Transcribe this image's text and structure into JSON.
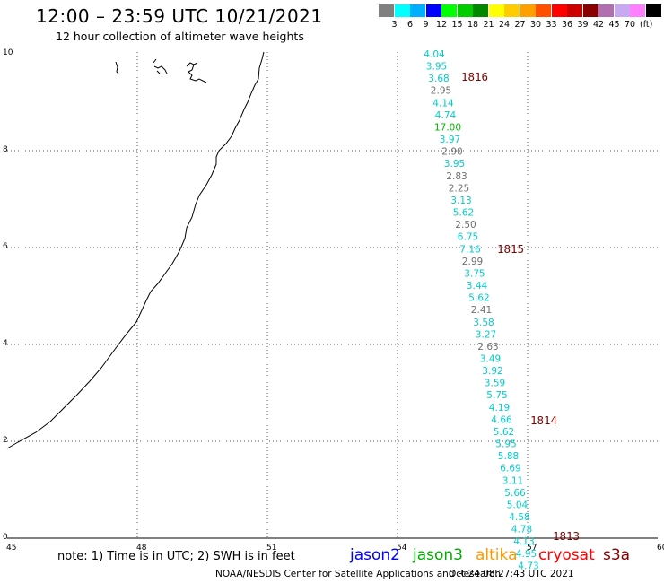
{
  "header": {
    "title": "12:00 – 23:59 UTC 10/21/2021",
    "subtitle": "12 hour collection of altimeter wave heights"
  },
  "legend": {
    "unit": "(ft)",
    "items": [
      {
        "label": "",
        "color": "#808080"
      },
      {
        "label": "3",
        "color": "#00ffff"
      },
      {
        "label": "6",
        "color": "#00b0ff"
      },
      {
        "label": "9",
        "color": "#0000ff"
      },
      {
        "label": "12",
        "color": "#00ff00"
      },
      {
        "label": "15",
        "color": "#00cc00"
      },
      {
        "label": "18",
        "color": "#008800"
      },
      {
        "label": "21",
        "color": "#ffff00"
      },
      {
        "label": "24",
        "color": "#ffcc00"
      },
      {
        "label": "27",
        "color": "#ffa000"
      },
      {
        "label": "30",
        "color": "#ff5000"
      },
      {
        "label": "33",
        "color": "#ff0000"
      },
      {
        "label": "36",
        "color": "#cc0000"
      },
      {
        "label": "39",
        "color": "#880000"
      },
      {
        "label": "42",
        "color": "#b070b0"
      },
      {
        "label": "45",
        "color": "#c8a8f0"
      },
      {
        "label": "70",
        "color": "#ff80ff"
      },
      {
        "label": "",
        "color": "#000000"
      }
    ]
  },
  "axes": {
    "x_ticks": [
      "45",
      "48",
      "51",
      "54",
      "57",
      "60"
    ],
    "y_ticks": [
      "0",
      "2",
      "4",
      "6",
      "8",
      "10"
    ]
  },
  "track": {
    "observations": [
      {
        "value": "4.04",
        "color": "#00cccc"
      },
      {
        "value": "3.95",
        "color": "#00cccc"
      },
      {
        "value": "3.68",
        "color": "#00cccc"
      },
      {
        "value": "2.95",
        "color": "#707070"
      },
      {
        "value": "4.14",
        "color": "#00cccc"
      },
      {
        "value": "4.74",
        "color": "#00cccc"
      },
      {
        "value": "17.00",
        "color": "#00bb00"
      },
      {
        "value": "3.97",
        "color": "#00cccc"
      },
      {
        "value": "2.90",
        "color": "#707070"
      },
      {
        "value": "3.95",
        "color": "#00cccc"
      },
      {
        "value": "2.83",
        "color": "#707070"
      },
      {
        "value": "2.25",
        "color": "#707070"
      },
      {
        "value": "3.13",
        "color": "#00cccc"
      },
      {
        "value": "5.62",
        "color": "#00cccc"
      },
      {
        "value": "2.50",
        "color": "#707070"
      },
      {
        "value": "6.75",
        "color": "#00cccc"
      },
      {
        "value": "7.16",
        "color": "#00cccc"
      },
      {
        "value": "2.99",
        "color": "#707070"
      },
      {
        "value": "3.75",
        "color": "#00cccc"
      },
      {
        "value": "3.44",
        "color": "#00cccc"
      },
      {
        "value": "5.62",
        "color": "#00cccc"
      },
      {
        "value": "2.41",
        "color": "#707070"
      },
      {
        "value": "3.58",
        "color": "#00cccc"
      },
      {
        "value": "3.27",
        "color": "#00cccc"
      },
      {
        "value": "2.63",
        "color": "#707070"
      },
      {
        "value": "3.49",
        "color": "#00cccc"
      },
      {
        "value": "3.92",
        "color": "#00cccc"
      },
      {
        "value": "3.59",
        "color": "#00cccc"
      },
      {
        "value": "5.75",
        "color": "#00cccc"
      },
      {
        "value": "4.19",
        "color": "#00cccc"
      },
      {
        "value": "4.66",
        "color": "#00cccc"
      },
      {
        "value": "5.62",
        "color": "#00cccc"
      },
      {
        "value": "5.95",
        "color": "#00cccc"
      },
      {
        "value": "5.88",
        "color": "#00cccc"
      },
      {
        "value": "6.69",
        "color": "#00cccc"
      },
      {
        "value": "3.11",
        "color": "#00cccc"
      },
      {
        "value": "5.66",
        "color": "#00cccc"
      },
      {
        "value": "5.04",
        "color": "#00cccc"
      },
      {
        "value": "4.58",
        "color": "#00cccc"
      },
      {
        "value": "4.78",
        "color": "#00cccc"
      },
      {
        "value": "4.13",
        "color": "#00cccc"
      },
      {
        "value": "4.95",
        "color": "#00cccc"
      },
      {
        "value": "4.73",
        "color": "#00cccc"
      }
    ],
    "time_labels": [
      "1816",
      "1815",
      "1814",
      "1813"
    ],
    "time_label_color": "#800000"
  },
  "footer": {
    "note": "note: 1) Time is in UTC; 2) SWH is in feet",
    "satellites": [
      {
        "name": "jason2",
        "color": "#0000ff"
      },
      {
        "name": "jason3",
        "color": "#00aa00"
      },
      {
        "name": "altika",
        "color": "#ff9900"
      },
      {
        "name": "cryosat",
        "color": "#ff0000"
      },
      {
        "name": "s3a",
        "color": "#880000"
      }
    ],
    "credit": "NOAA/NESDIS Center for Satellite Applications and Research",
    "timestamp": "Oct 24 08:27:43 UTC 2021"
  }
}
